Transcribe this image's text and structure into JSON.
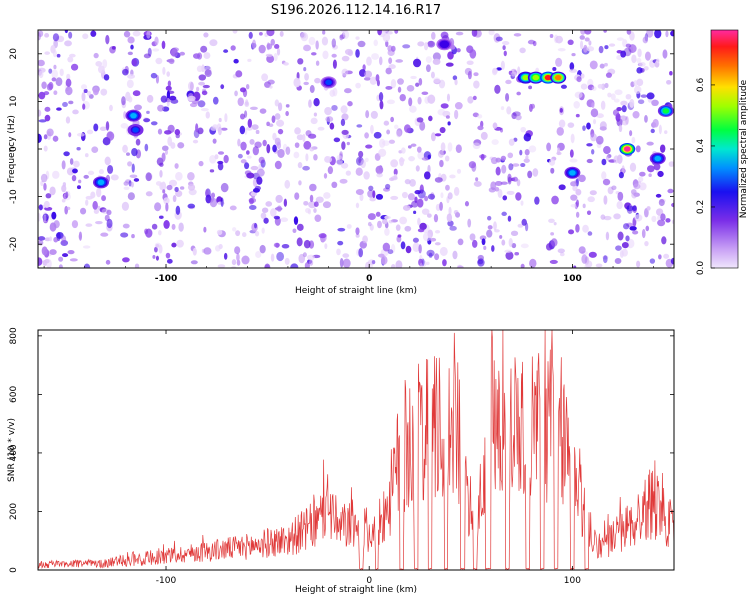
{
  "title": "S196.2026.112.14.16.R17",
  "colors": {
    "snr_line": "#e03a3a",
    "spectro_base": "#8a3cf0",
    "colormap": [
      "#e6c8fa",
      "#b06ef0",
      "#7a2ee8",
      "#3a00e8",
      "#0044ff",
      "#00b0ff",
      "#00e8c0",
      "#00ff40",
      "#a0ff00",
      "#ffe000",
      "#ff8000",
      "#ff1a1a",
      "#ff2aa0"
    ]
  },
  "chart_data": [
    {
      "type": "heatmap",
      "xlabel": "Height of straight line (km)",
      "ylabel": "Frequency (Hz)",
      "xlim": [
        -163,
        150
      ],
      "ylim": [
        -25,
        25
      ],
      "xticks": [
        "-100",
        "0",
        "100"
      ],
      "xtick_values": [
        -100,
        0,
        100
      ],
      "yticks": [
        "20",
        "10",
        "0",
        "-10",
        "-20"
      ],
      "ytick_values": [
        20,
        10,
        0,
        -10,
        -20
      ],
      "colorbar": {
        "label": "Normalized spectral amplitude",
        "range": [
          0.0,
          0.78
        ],
        "ticks": [
          "0.0",
          "0.2",
          "0.4",
          "0.6"
        ],
        "tick_values": [
          0.0,
          0.2,
          0.4,
          0.6
        ]
      },
      "hotspots": [
        {
          "x": -132,
          "y": -7,
          "amplitude": 0.35
        },
        {
          "x": -116,
          "y": 7,
          "amplitude": 0.3
        },
        {
          "x": -115,
          "y": 4,
          "amplitude": 0.28
        },
        {
          "x": -20,
          "y": 14,
          "amplitude": 0.25
        },
        {
          "x": 37,
          "y": 22,
          "amplitude": 0.22
        },
        {
          "x": 77,
          "y": 15,
          "amplitude": 0.5
        },
        {
          "x": 82,
          "y": 15,
          "amplitude": 0.55
        },
        {
          "x": 88,
          "y": 15,
          "amplitude": 0.7
        },
        {
          "x": 93,
          "y": 15,
          "amplitude": 0.65
        },
        {
          "x": 100,
          "y": -5,
          "amplitude": 0.3
        },
        {
          "x": 127,
          "y": 0,
          "amplitude": 0.75
        },
        {
          "x": 142,
          "y": -2,
          "amplitude": 0.35
        },
        {
          "x": 146,
          "y": 8,
          "amplitude": 0.45
        }
      ],
      "gaps": [
        [
          -125,
          -121
        ],
        [
          -113,
          -110
        ],
        [
          -92,
          -88
        ],
        [
          -70,
          -67
        ],
        [
          -40,
          -37
        ],
        [
          -9,
          -6
        ],
        [
          45,
          48
        ],
        [
          57,
          59
        ],
        [
          83,
          87
        ],
        [
          96,
          99
        ],
        [
          111,
          113
        ]
      ]
    },
    {
      "type": "line",
      "xlabel": "Height of straight line (km)",
      "ylabel": "SNR (10 * v/v)",
      "xlim": [
        -163,
        150
      ],
      "ylim": [
        0,
        820
      ],
      "xticks": [
        "-100",
        "0",
        "100"
      ],
      "xtick_values": [
        -100,
        0,
        100
      ],
      "yticks": [
        "800",
        "600",
        "400",
        "200",
        "0"
      ],
      "ytick_values": [
        800,
        600,
        400,
        200,
        0
      ],
      "envelope": {
        "x": [
          -163,
          -130,
          -120,
          -100,
          -80,
          -60,
          -40,
          -25,
          -20,
          -15,
          -10,
          0,
          5,
          10,
          15,
          20,
          30,
          40,
          45,
          50,
          55,
          60,
          65,
          70,
          80,
          90,
          95,
          100,
          105,
          110,
          115,
          120,
          130,
          140,
          145,
          150
        ],
        "y": [
          20,
          25,
          40,
          60,
          80,
          100,
          130,
          200,
          290,
          170,
          200,
          160,
          200,
          300,
          480,
          560,
          580,
          600,
          560,
          200,
          300,
          650,
          620,
          650,
          640,
          620,
          580,
          420,
          280,
          130,
          100,
          140,
          200,
          300,
          260,
          150
        ]
      },
      "dropouts": [
        [
          -5,
          -3
        ],
        [
          3,
          4.5
        ],
        [
          15,
          17
        ],
        [
          22,
          24
        ],
        [
          29,
          31
        ],
        [
          37,
          38.5
        ],
        [
          45,
          47
        ],
        [
          51,
          53
        ],
        [
          57,
          60
        ],
        [
          67,
          69
        ],
        [
          77,
          79
        ],
        [
          84,
          86
        ],
        [
          91,
          93
        ],
        [
          99,
          101
        ],
        [
          106,
          108
        ]
      ]
    }
  ]
}
